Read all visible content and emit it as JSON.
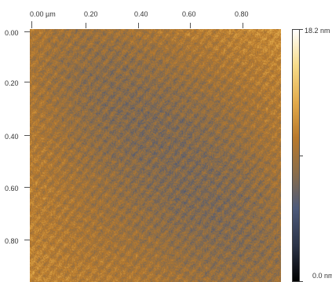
{
  "x_axis": {
    "ticks": [
      "0.00 µm",
      "0.20",
      "0.40",
      "0.60",
      "0.80"
    ],
    "values_um": [
      0.0,
      0.2,
      0.4,
      0.6,
      0.8
    ]
  },
  "y_axis": {
    "ticks": [
      "0.00",
      "0.20",
      "0.40",
      "0.60",
      "0.80"
    ],
    "values_um": [
      0.0,
      0.2,
      0.4,
      0.6,
      0.8
    ]
  },
  "colorbar": {
    "max_label": "18.2 nm",
    "min_label": "0.0 nm",
    "range_nm": [
      0.0,
      18.2
    ],
    "colors": [
      "#000000",
      "#2b3346",
      "#4d5a7a",
      "#8a6d4a",
      "#b8792c",
      "#e2aa4a",
      "#f7dc8a",
      "#ffffff"
    ]
  },
  "image": {
    "scan_size_um": 0.92,
    "base_color": "#a0743e"
  }
}
